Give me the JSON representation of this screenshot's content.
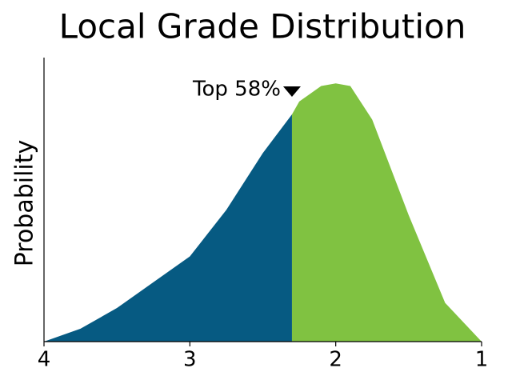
{
  "chart_data": {
    "type": "area",
    "title": "Local Grade Distribution",
    "y_label": "Probability",
    "x": [
      4,
      3.75,
      3.5,
      3.25,
      3.0,
      2.75,
      2.5,
      2.3,
      2.25,
      2.1,
      2.0,
      1.9,
      1.75,
      1.5,
      1.25,
      1.0
    ],
    "series": [
      {
        "color": "#065a82",
        "values": [
          0,
          0.05,
          0.13,
          0.23,
          0.33,
          0.51,
          0.73,
          0.88,
          null,
          null,
          null,
          null,
          null,
          null,
          null,
          null
        ]
      },
      {
        "color": "#80c241",
        "values": [
          null,
          null,
          null,
          null,
          null,
          null,
          null,
          0.88,
          0.93,
          0.99,
          1.0,
          0.99,
          0.86,
          0.49,
          0.15,
          0
        ]
      }
    ],
    "xlim": [
      4,
      1
    ],
    "xticks": [
      4,
      3,
      2,
      1
    ],
    "ylim": [
      0,
      1.1
    ],
    "annotation": {
      "text": "Top 58%",
      "x": 2.3,
      "y": 0.97
    }
  }
}
